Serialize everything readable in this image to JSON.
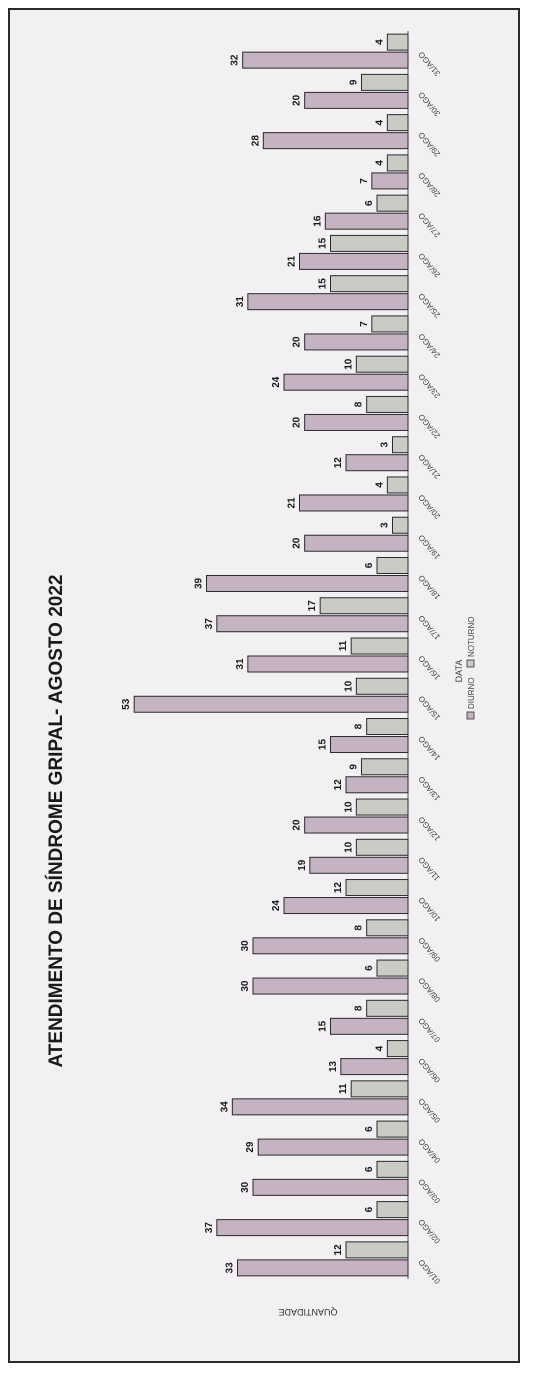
{
  "chart_data": {
    "type": "bar",
    "title": "ATENDIMENTO DE SÍNDROME GRIPAL- AGOSTO 2022",
    "xlabel": "DATA",
    "ylabel": "QUANTIDADE",
    "categories": [
      "01/AGO",
      "02/AGO",
      "03/AGO",
      "04/AGO",
      "05/AGO",
      "06/AGO",
      "07/AGO",
      "08/AGO",
      "09/AGO",
      "10/AGO",
      "11/AGO",
      "12/AGO",
      "13/AGO",
      "14/AGO",
      "15/AGO",
      "16/AGO",
      "17/AGO",
      "18/AGO",
      "19/AGO",
      "20/AGO",
      "21/AGO",
      "22/AGO",
      "23/AGO",
      "24/AGO",
      "25/AGO",
      "26/AGO",
      "27/AGO",
      "28/AGO",
      "29/AGO",
      "30/AGO",
      "31/AGO"
    ],
    "series": [
      {
        "name": "DIURNO",
        "color": "#c5b3c3",
        "values": [
          33,
          37,
          30,
          29,
          34,
          13,
          15,
          30,
          30,
          24,
          19,
          20,
          12,
          15,
          53,
          31,
          37,
          39,
          20,
          21,
          12,
          20,
          24,
          20,
          31,
          21,
          16,
          7,
          28,
          20,
          32
        ]
      },
      {
        "name": "NOTURNO",
        "color": "#c9ccc4",
        "values": [
          12,
          6,
          6,
          6,
          11,
          4,
          8,
          6,
          8,
          12,
          10,
          10,
          9,
          8,
          10,
          11,
          17,
          6,
          3,
          4,
          3,
          8,
          10,
          7,
          15,
          15,
          6,
          4,
          4,
          9,
          4
        ]
      }
    ],
    "ylim": [
      0,
      60
    ],
    "grid": false,
    "legend": "bottom"
  }
}
